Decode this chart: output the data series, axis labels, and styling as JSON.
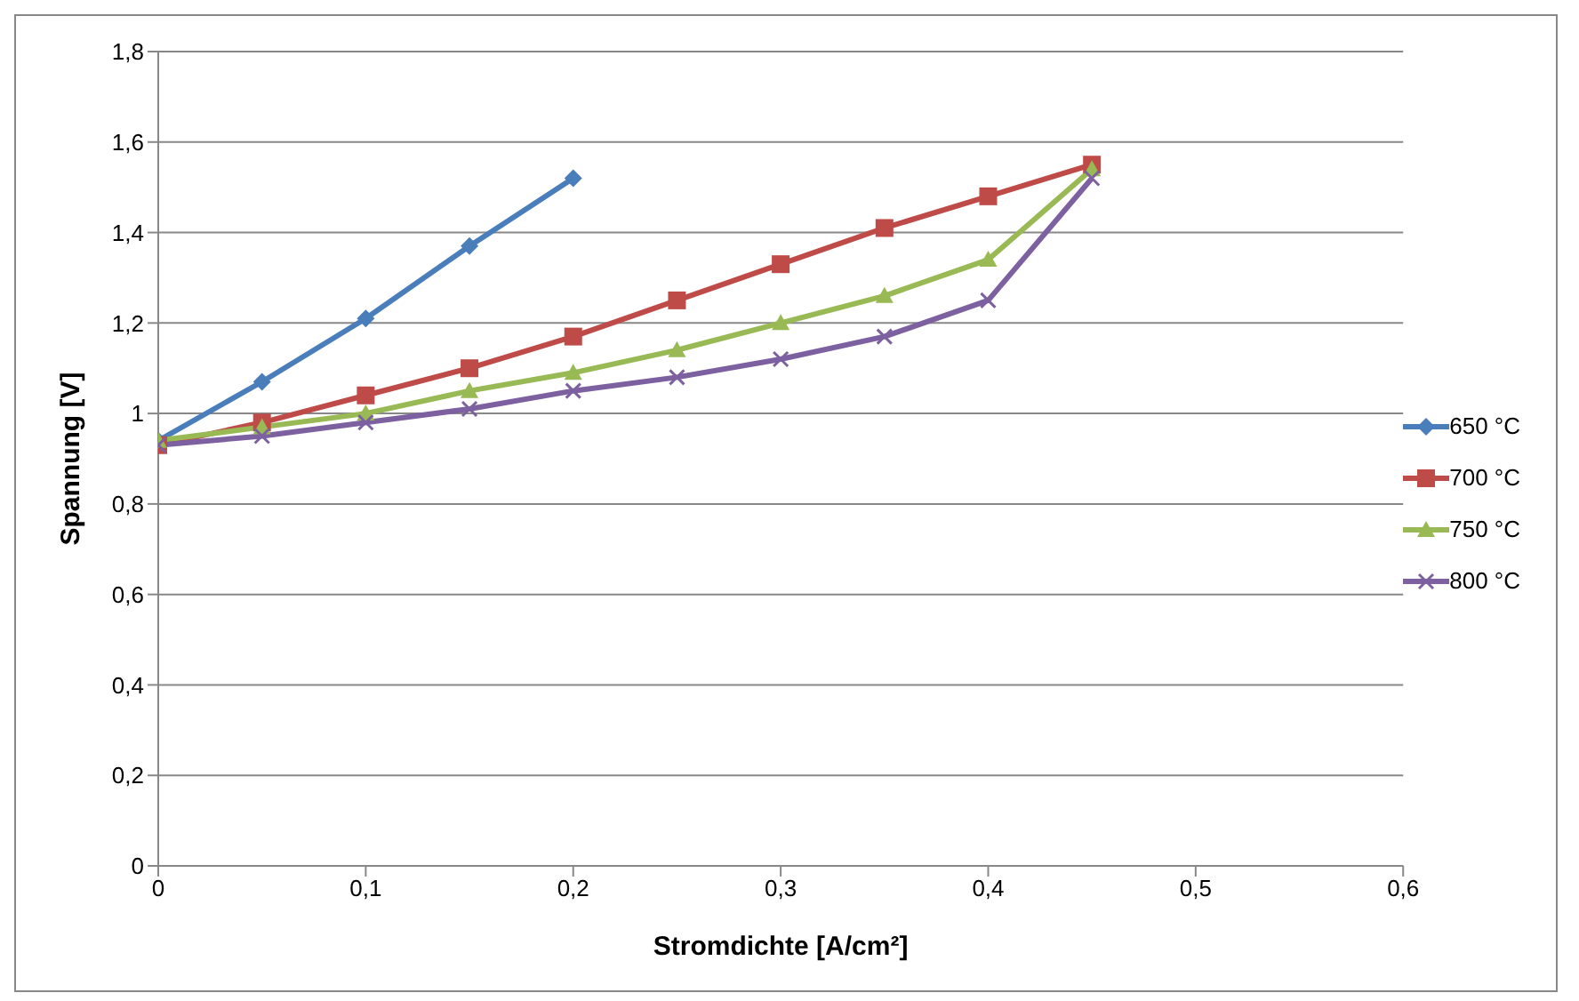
{
  "chart_data": {
    "type": "line",
    "xlabel": "Stromdichte [A/cm²]",
    "ylabel": "Spannung [V]",
    "xlim": [
      0,
      0.6
    ],
    "xticks": [
      0,
      {
        "value": 0.1,
        "label": "0,1"
      },
      {
        "value": 0.2,
        "label": "0,2"
      },
      {
        "value": 0.3,
        "label": "0,3"
      },
      {
        "value": 0.4,
        "label": "0,4"
      },
      {
        "value": 0.5,
        "label": "0,5"
      },
      {
        "value": 0.6,
        "label": "0,6"
      }
    ],
    "ylim": [
      0,
      1.8
    ],
    "yticks": [
      0,
      {
        "value": 0.2,
        "label": "0,2"
      },
      {
        "value": 0.4,
        "label": "0,4"
      },
      {
        "value": 0.6,
        "label": "0,6"
      },
      {
        "value": 0.8,
        "label": "0,8"
      },
      1,
      {
        "value": 1.2,
        "label": "1,2"
      },
      {
        "value": 1.4,
        "label": "1,4"
      },
      {
        "value": 1.6,
        "label": "1,6"
      },
      {
        "value": 1.8,
        "label": "1,8"
      }
    ],
    "grid": "y",
    "legend": "right",
    "line_style": "solid",
    "x": [
      0,
      0.05,
      0.1,
      0.15,
      0.2,
      0.25,
      0.3,
      0.35,
      0.4,
      0.45
    ],
    "series": [
      {
        "name": "650 °C",
        "color": "#4a7ebb",
        "marker": "diamond",
        "values": [
          0.94,
          1.07,
          1.21,
          1.37,
          1.52,
          null,
          null,
          null,
          null,
          null
        ]
      },
      {
        "name": "700 °C",
        "color": "#be4b48",
        "marker": "square",
        "values": [
          0.93,
          0.98,
          1.04,
          1.1,
          1.17,
          1.25,
          1.33,
          1.41,
          1.48,
          1.55
        ]
      },
      {
        "name": "750 °C",
        "color": "#98b954",
        "marker": "triangle",
        "values": [
          0.94,
          0.97,
          1.0,
          1.05,
          1.09,
          1.14,
          1.2,
          1.26,
          1.34,
          1.54
        ]
      },
      {
        "name": "800 °C",
        "color": "#7d60a0",
        "marker": "cross",
        "values": [
          0.93,
          0.95,
          0.98,
          1.01,
          1.05,
          1.08,
          1.12,
          1.17,
          1.25,
          1.52
        ]
      }
    ]
  }
}
